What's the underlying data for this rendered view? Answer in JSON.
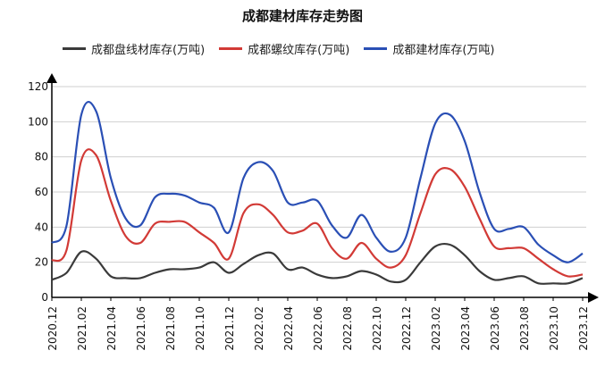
{
  "chart_data": {
    "type": "line",
    "title": "成都建材库存走势图",
    "xlabel": "",
    "ylabel": "",
    "ylim": [
      0,
      120
    ],
    "yticks": [
      0,
      20,
      40,
      60,
      80,
      100,
      120
    ],
    "xtick_labels": [
      "2020.12",
      "2021.02",
      "2021.04",
      "2021.06",
      "2021.08",
      "2021.10",
      "2021.12",
      "2022.02",
      "2022.04",
      "2022.06",
      "2022.08",
      "2022.10",
      "2022.12",
      "2023.02",
      "2023.04",
      "2023.06",
      "2023.08",
      "2023.10",
      "2023.12"
    ],
    "x": [
      "2020.12",
      "2021.01",
      "2021.02",
      "2021.03",
      "2021.04",
      "2021.05",
      "2021.06",
      "2021.07",
      "2021.08",
      "2021.09",
      "2021.10",
      "2021.11",
      "2021.12",
      "2022.01",
      "2022.02",
      "2022.03",
      "2022.04",
      "2022.05",
      "2022.06",
      "2022.07",
      "2022.08",
      "2022.09",
      "2022.10",
      "2022.11",
      "2022.12",
      "2023.01",
      "2023.02",
      "2023.03",
      "2023.04",
      "2023.05",
      "2023.06",
      "2023.07",
      "2023.08",
      "2023.09",
      "2023.10",
      "2023.11",
      "2023.12"
    ],
    "legend_position": "top",
    "grid": true,
    "series": [
      {
        "name": "成都盘线材库存(万吨)",
        "color": "#3a3a3a",
        "values": [
          10,
          14,
          26,
          22,
          12,
          11,
          11,
          14,
          16,
          16,
          17,
          20,
          14,
          19,
          24,
          25,
          16,
          17,
          13,
          11,
          12,
          15,
          13,
          9,
          10,
          20,
          29,
          30,
          24,
          15,
          10,
          11,
          12,
          8,
          8,
          8,
          11
        ]
      },
      {
        "name": "成都螺纹库存(万吨)",
        "color": "#d23a36",
        "values": [
          21,
          27,
          78,
          81,
          55,
          35,
          31,
          42,
          43,
          43,
          37,
          31,
          22,
          48,
          53,
          47,
          37,
          38,
          42,
          28,
          22,
          31,
          22,
          17,
          24,
          48,
          70,
          73,
          63,
          45,
          29,
          28,
          28,
          22,
          16,
          12,
          13
        ]
      },
      {
        "name": "成都建材库存(万吨)",
        "color": "#2a4fb5",
        "values": [
          31,
          41,
          104,
          106,
          68,
          45,
          41,
          57,
          59,
          58,
          54,
          51,
          37,
          68,
          77,
          72,
          54,
          54,
          55,
          41,
          34,
          47,
          34,
          26,
          34,
          68,
          99,
          104,
          89,
          60,
          39,
          39,
          40,
          30,
          24,
          20,
          25
        ]
      }
    ]
  }
}
